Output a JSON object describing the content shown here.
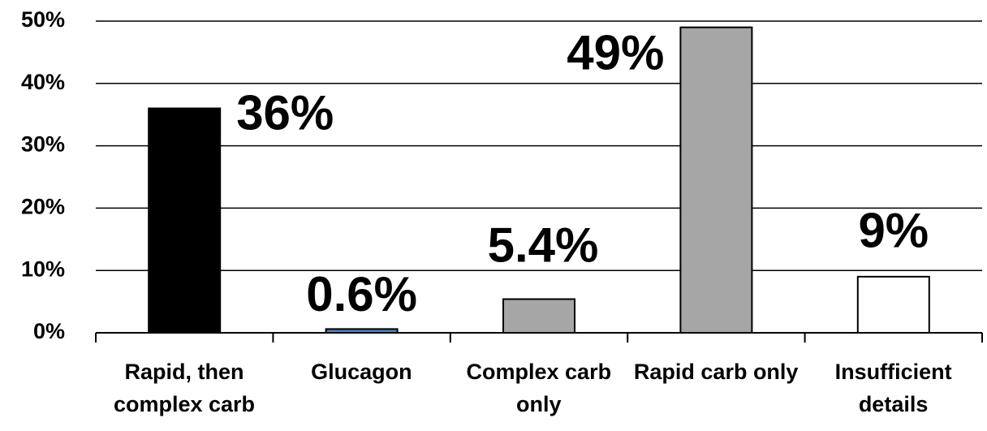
{
  "chart_data": {
    "type": "bar",
    "categories": [
      "Rapid, then complex carb",
      "Glucagon",
      "Complex carb only",
      "Rapid carb only",
      "Insufficient details"
    ],
    "values": [
      36,
      0.6,
      5.4,
      49,
      9
    ],
    "value_labels": [
      "36%",
      "0.6%",
      "5.4%",
      "49%",
      "9%"
    ],
    "colors": [
      "#000000",
      "#4f81bd",
      "#a6a6a6",
      "#a6a6a6",
      "#ffffff"
    ],
    "ylim": [
      0,
      50
    ],
    "yticks": [
      {
        "value": 0,
        "label": "0%"
      },
      {
        "value": 10,
        "label": "10%"
      },
      {
        "value": 20,
        "label": "20%"
      },
      {
        "value": 30,
        "label": "30%"
      },
      {
        "value": 40,
        "label": "40%"
      },
      {
        "value": 50,
        "label": "50%"
      }
    ],
    "grid": true
  }
}
